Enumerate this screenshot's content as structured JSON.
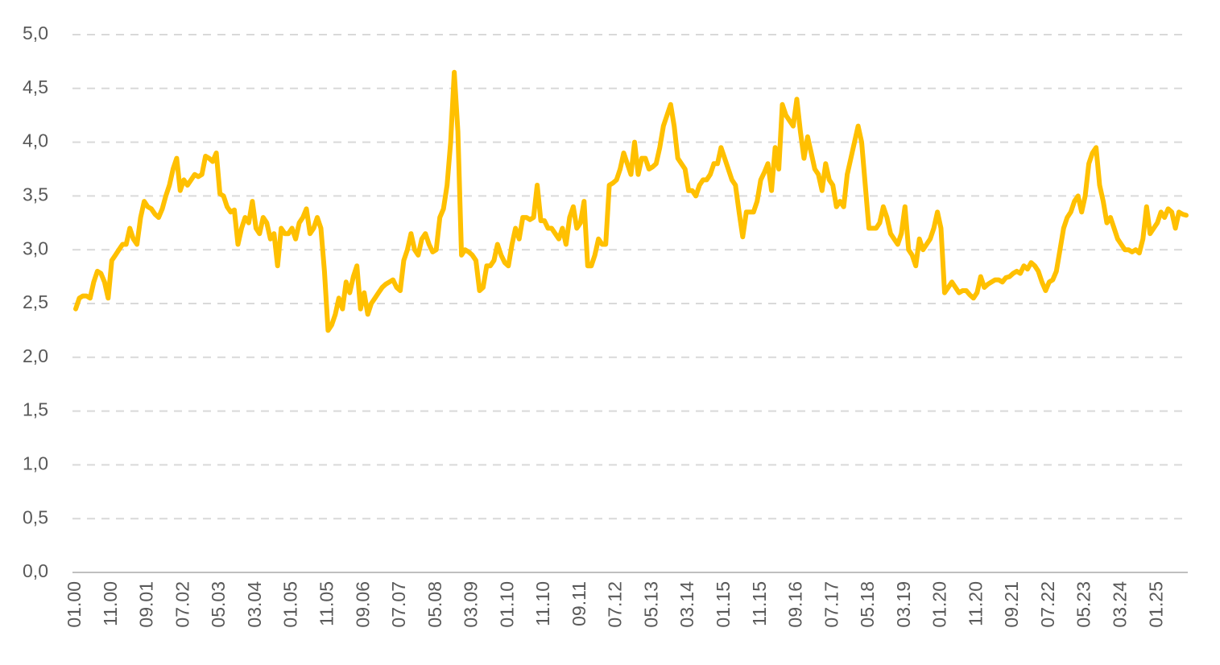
{
  "chart_data": {
    "type": "line",
    "categories": [
      "01.00",
      null,
      null,
      null,
      null,
      null,
      null,
      null,
      null,
      null,
      "11.00",
      null,
      null,
      null,
      null,
      null,
      null,
      null,
      null,
      null,
      "09.01",
      null,
      null,
      null,
      null,
      null,
      null,
      null,
      null,
      null,
      "07.02",
      null,
      null,
      null,
      null,
      null,
      null,
      null,
      null,
      null,
      "05.03",
      null,
      null,
      null,
      null,
      null,
      null,
      null,
      null,
      null,
      "03.04",
      null,
      null,
      null,
      null,
      null,
      null,
      null,
      null,
      null,
      "01.05",
      null,
      null,
      null,
      null,
      null,
      null,
      null,
      null,
      null,
      "11.05",
      null,
      null,
      null,
      null,
      null,
      null,
      null,
      null,
      null,
      "09.06",
      null,
      null,
      null,
      null,
      null,
      null,
      null,
      null,
      null,
      "07.07",
      null,
      null,
      null,
      null,
      null,
      null,
      null,
      null,
      null,
      "05.08",
      null,
      null,
      null,
      null,
      null,
      null,
      null,
      null,
      null,
      "03.09",
      null,
      null,
      null,
      null,
      null,
      null,
      null,
      null,
      null,
      "01.10",
      null,
      null,
      null,
      null,
      null,
      null,
      null,
      null,
      null,
      "11.10",
      null,
      null,
      null,
      null,
      null,
      null,
      null,
      null,
      null,
      "09.11",
      null,
      null,
      null,
      null,
      null,
      null,
      null,
      null,
      null,
      "07.12",
      null,
      null,
      null,
      null,
      null,
      null,
      null,
      null,
      null,
      "05.13",
      null,
      null,
      null,
      null,
      null,
      null,
      null,
      null,
      null,
      "03.14",
      null,
      null,
      null,
      null,
      null,
      null,
      null,
      null,
      null,
      "01.15",
      null,
      null,
      null,
      null,
      null,
      null,
      null,
      null,
      null,
      "11.15",
      null,
      null,
      null,
      null,
      null,
      null,
      null,
      null,
      null,
      "09.16",
      null,
      null,
      null,
      null,
      null,
      null,
      null,
      null,
      null,
      "07.17",
      null,
      null,
      null,
      null,
      null,
      null,
      null,
      null,
      null,
      "05.18",
      null,
      null,
      null,
      null,
      null,
      null,
      null,
      null,
      null,
      "03.19",
      null,
      null,
      null,
      null,
      null,
      null,
      null,
      null,
      null,
      "01.20",
      null,
      null,
      null,
      null,
      null,
      null,
      null,
      null,
      null,
      "11.20",
      null,
      null,
      null,
      null,
      null,
      null,
      null,
      null,
      null,
      "09.21",
      null,
      null,
      null,
      null,
      null,
      null,
      null,
      null,
      null,
      "07.22",
      null,
      null,
      null,
      null,
      null,
      null,
      null,
      null,
      null,
      "05.23",
      null,
      null,
      null,
      null,
      null,
      null,
      null,
      null,
      null,
      "03.24",
      null,
      null,
      null,
      null,
      null,
      null,
      null,
      null,
      null,
      "01.25",
      null,
      null,
      null,
      null,
      null,
      null,
      null,
      null
    ],
    "series": [
      {
        "color": "#FFC000",
        "values": [
          2.45,
          2.55,
          2.57,
          2.57,
          2.55,
          2.7,
          2.8,
          2.78,
          2.7,
          2.55,
          2.9,
          2.95,
          3.0,
          3.05,
          3.05,
          3.2,
          3.1,
          3.05,
          3.3,
          3.45,
          3.4,
          3.38,
          3.33,
          3.3,
          3.38,
          3.5,
          3.6,
          3.75,
          3.85,
          3.55,
          3.65,
          3.6,
          3.65,
          3.7,
          3.68,
          3.7,
          3.87,
          3.85,
          3.82,
          3.9,
          3.52,
          3.5,
          3.4,
          3.35,
          3.37,
          3.05,
          3.2,
          3.3,
          3.25,
          3.45,
          3.2,
          3.15,
          3.3,
          3.25,
          3.1,
          3.15,
          2.85,
          3.2,
          3.15,
          3.15,
          3.2,
          3.1,
          3.25,
          3.3,
          3.38,
          3.15,
          3.2,
          3.3,
          3.2,
          2.8,
          2.25,
          2.3,
          2.4,
          2.55,
          2.45,
          2.7,
          2.6,
          2.75,
          2.85,
          2.45,
          2.6,
          2.4,
          2.5,
          2.55,
          2.6,
          2.65,
          2.68,
          2.7,
          2.72,
          2.65,
          2.62,
          2.9,
          3.0,
          3.15,
          3.0,
          2.95,
          3.1,
          3.15,
          3.05,
          2.98,
          3.0,
          3.3,
          3.38,
          3.6,
          4.0,
          4.65,
          4.1,
          2.95,
          3.0,
          2.98,
          2.95,
          2.9,
          2.62,
          2.65,
          2.85,
          2.85,
          2.9,
          3.05,
          2.95,
          2.88,
          2.85,
          3.05,
          3.2,
          3.1,
          3.3,
          3.3,
          3.28,
          3.3,
          3.6,
          3.27,
          3.27,
          3.2,
          3.2,
          3.15,
          3.1,
          3.2,
          3.05,
          3.3,
          3.4,
          3.2,
          3.25,
          3.45,
          2.85,
          2.85,
          2.95,
          3.1,
          3.05,
          3.05,
          3.6,
          3.62,
          3.65,
          3.75,
          3.9,
          3.8,
          3.7,
          4.0,
          3.7,
          3.85,
          3.85,
          3.75,
          3.77,
          3.8,
          3.95,
          4.15,
          4.25,
          4.35,
          4.15,
          3.85,
          3.8,
          3.75,
          3.55,
          3.55,
          3.5,
          3.6,
          3.65,
          3.65,
          3.7,
          3.8,
          3.8,
          3.95,
          3.85,
          3.75,
          3.65,
          3.6,
          3.35,
          3.12,
          3.35,
          3.35,
          3.35,
          3.45,
          3.65,
          3.72,
          3.8,
          3.55,
          3.95,
          3.75,
          4.35,
          4.25,
          4.2,
          4.15,
          4.4,
          4.1,
          3.85,
          4.05,
          3.9,
          3.75,
          3.7,
          3.55,
          3.8,
          3.65,
          3.6,
          3.4,
          3.45,
          3.4,
          3.7,
          3.85,
          4.0,
          4.15,
          4.0,
          3.6,
          3.2,
          3.2,
          3.2,
          3.25,
          3.4,
          3.3,
          3.15,
          3.1,
          3.05,
          3.15,
          3.4,
          3.0,
          2.95,
          2.85,
          3.1,
          3.0,
          3.05,
          3.1,
          3.2,
          3.35,
          3.2,
          2.6,
          2.65,
          2.7,
          2.65,
          2.6,
          2.62,
          2.62,
          2.58,
          2.55,
          2.6,
          2.75,
          2.65,
          2.68,
          2.7,
          2.72,
          2.72,
          2.7,
          2.74,
          2.75,
          2.78,
          2.8,
          2.78,
          2.85,
          2.82,
          2.88,
          2.85,
          2.8,
          2.7,
          2.62,
          2.7,
          2.72,
          2.8,
          3.0,
          3.2,
          3.3,
          3.35,
          3.45,
          3.5,
          3.35,
          3.5,
          3.8,
          3.9,
          3.95,
          3.6,
          3.45,
          3.25,
          3.3,
          3.2,
          3.1,
          3.05,
          3.0,
          3.0,
          2.98,
          3.0,
          2.97,
          3.1,
          3.4,
          3.15,
          3.2,
          3.25,
          3.35,
          3.3,
          3.38,
          3.35,
          3.2,
          3.35,
          3.33,
          3.32
        ]
      }
    ],
    "ylim": [
      0,
      5
    ],
    "yticks": [
      {
        "value": 0,
        "label": "0,0"
      },
      {
        "value": 0.5,
        "label": "0,5"
      },
      {
        "value": 1,
        "label": "1,0"
      },
      {
        "value": 1.5,
        "label": "1,5"
      },
      {
        "value": 2,
        "label": "2,0"
      },
      {
        "value": 2.5,
        "label": "2,5"
      },
      {
        "value": 3,
        "label": "3,0"
      },
      {
        "value": 3.5,
        "label": "3,5"
      },
      {
        "value": 4,
        "label": "4,0"
      },
      {
        "value": 4.5,
        "label": "4,5"
      },
      {
        "value": 5,
        "label": "5,0"
      }
    ],
    "grid": true
  }
}
